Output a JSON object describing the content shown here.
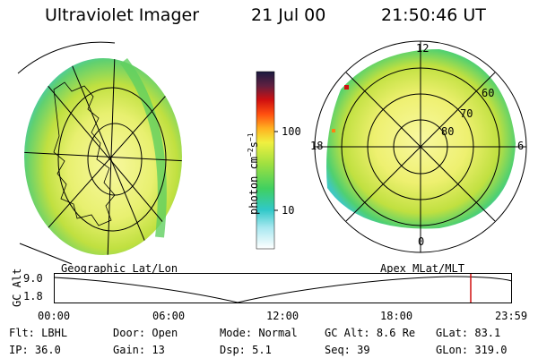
{
  "header": {
    "instrument": "Ultraviolet Imager",
    "date": "21 Jul 00",
    "time": "21:50:46 UT"
  },
  "colorbar": {
    "unit_label": "photon cm",
    "unit_sup1": "−2",
    "unit_s": "s",
    "unit_sup2": "−1",
    "ticks": [
      "100",
      "10"
    ]
  },
  "panels": {
    "left_label": "Geographic Lat/Lon",
    "right_label": "Apex MLat/MLT",
    "polar_mlt": [
      "12",
      "18",
      "6",
      "0"
    ],
    "polar_lat": [
      "60",
      "70",
      "80"
    ]
  },
  "altitude_plot": {
    "ylabel": "GC Alt",
    "yticks": [
      "9.0",
      "1.8"
    ],
    "xticks": [
      "00:00",
      "06:00",
      "12:00",
      "18:00",
      "23:59"
    ]
  },
  "info": {
    "row1": [
      {
        "label": "Flt:",
        "value": "LBHL"
      },
      {
        "label": "Door:",
        "value": "Open"
      },
      {
        "label": "Mode:",
        "value": "Normal"
      },
      {
        "label": "GC Alt:",
        "value": "8.6 Re"
      },
      {
        "label": "GLat:",
        "value": "83.1"
      }
    ],
    "row2": [
      {
        "label": "IP:",
        "value": "36.0"
      },
      {
        "label": "Gain:",
        "value": "13"
      },
      {
        "label": "Dsp:",
        "value": "5.1"
      },
      {
        "label": "Seq:",
        "value": "39"
      },
      {
        "label": "GLon:",
        "value": "319.0"
      }
    ]
  },
  "colors": {
    "marker": "#d01010"
  }
}
